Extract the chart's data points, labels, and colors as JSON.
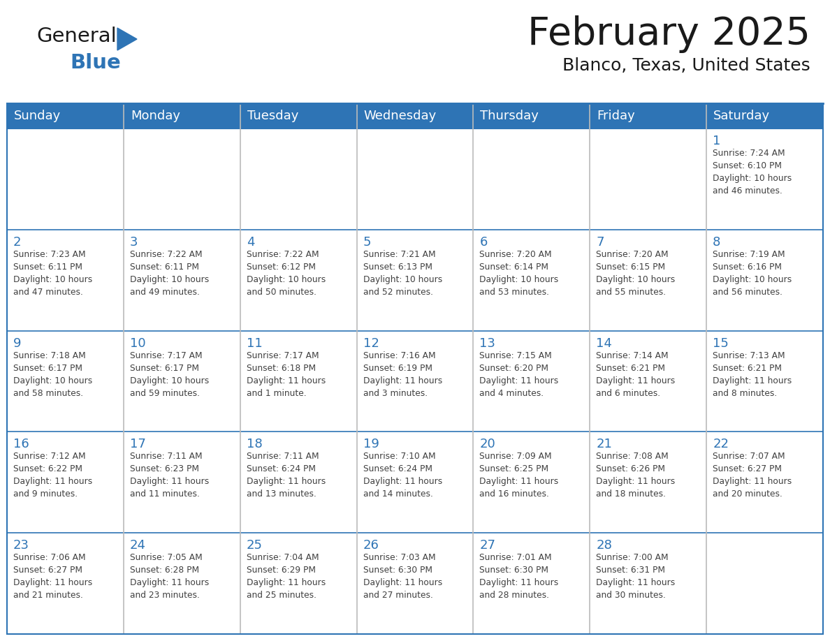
{
  "title": "February 2025",
  "subtitle": "Blanco, Texas, United States",
  "header_color": "#2E74B5",
  "header_text_color": "#FFFFFF",
  "day_number_color": "#2E74B5",
  "text_color": "#404040",
  "border_color": "#2E74B5",
  "row_sep_color": "#4472A8",
  "col_sep_color": "#BBBBBB",
  "logo_general_color": "#1a1a1a",
  "logo_blue_color": "#2E74B5",
  "triangle_color": "#2E74B5",
  "days_of_week": [
    "Sunday",
    "Monday",
    "Tuesday",
    "Wednesday",
    "Thursday",
    "Friday",
    "Saturday"
  ],
  "weeks": [
    [
      {
        "day": null,
        "info": null
      },
      {
        "day": null,
        "info": null
      },
      {
        "day": null,
        "info": null
      },
      {
        "day": null,
        "info": null
      },
      {
        "day": null,
        "info": null
      },
      {
        "day": null,
        "info": null
      },
      {
        "day": "1",
        "info": "Sunrise: 7:24 AM\nSunset: 6:10 PM\nDaylight: 10 hours\nand 46 minutes."
      }
    ],
    [
      {
        "day": "2",
        "info": "Sunrise: 7:23 AM\nSunset: 6:11 PM\nDaylight: 10 hours\nand 47 minutes."
      },
      {
        "day": "3",
        "info": "Sunrise: 7:22 AM\nSunset: 6:11 PM\nDaylight: 10 hours\nand 49 minutes."
      },
      {
        "day": "4",
        "info": "Sunrise: 7:22 AM\nSunset: 6:12 PM\nDaylight: 10 hours\nand 50 minutes."
      },
      {
        "day": "5",
        "info": "Sunrise: 7:21 AM\nSunset: 6:13 PM\nDaylight: 10 hours\nand 52 minutes."
      },
      {
        "day": "6",
        "info": "Sunrise: 7:20 AM\nSunset: 6:14 PM\nDaylight: 10 hours\nand 53 minutes."
      },
      {
        "day": "7",
        "info": "Sunrise: 7:20 AM\nSunset: 6:15 PM\nDaylight: 10 hours\nand 55 minutes."
      },
      {
        "day": "8",
        "info": "Sunrise: 7:19 AM\nSunset: 6:16 PM\nDaylight: 10 hours\nand 56 minutes."
      }
    ],
    [
      {
        "day": "9",
        "info": "Sunrise: 7:18 AM\nSunset: 6:17 PM\nDaylight: 10 hours\nand 58 minutes."
      },
      {
        "day": "10",
        "info": "Sunrise: 7:17 AM\nSunset: 6:17 PM\nDaylight: 10 hours\nand 59 minutes."
      },
      {
        "day": "11",
        "info": "Sunrise: 7:17 AM\nSunset: 6:18 PM\nDaylight: 11 hours\nand 1 minute."
      },
      {
        "day": "12",
        "info": "Sunrise: 7:16 AM\nSunset: 6:19 PM\nDaylight: 11 hours\nand 3 minutes."
      },
      {
        "day": "13",
        "info": "Sunrise: 7:15 AM\nSunset: 6:20 PM\nDaylight: 11 hours\nand 4 minutes."
      },
      {
        "day": "14",
        "info": "Sunrise: 7:14 AM\nSunset: 6:21 PM\nDaylight: 11 hours\nand 6 minutes."
      },
      {
        "day": "15",
        "info": "Sunrise: 7:13 AM\nSunset: 6:21 PM\nDaylight: 11 hours\nand 8 minutes."
      }
    ],
    [
      {
        "day": "16",
        "info": "Sunrise: 7:12 AM\nSunset: 6:22 PM\nDaylight: 11 hours\nand 9 minutes."
      },
      {
        "day": "17",
        "info": "Sunrise: 7:11 AM\nSunset: 6:23 PM\nDaylight: 11 hours\nand 11 minutes."
      },
      {
        "day": "18",
        "info": "Sunrise: 7:11 AM\nSunset: 6:24 PM\nDaylight: 11 hours\nand 13 minutes."
      },
      {
        "day": "19",
        "info": "Sunrise: 7:10 AM\nSunset: 6:24 PM\nDaylight: 11 hours\nand 14 minutes."
      },
      {
        "day": "20",
        "info": "Sunrise: 7:09 AM\nSunset: 6:25 PM\nDaylight: 11 hours\nand 16 minutes."
      },
      {
        "day": "21",
        "info": "Sunrise: 7:08 AM\nSunset: 6:26 PM\nDaylight: 11 hours\nand 18 minutes."
      },
      {
        "day": "22",
        "info": "Sunrise: 7:07 AM\nSunset: 6:27 PM\nDaylight: 11 hours\nand 20 minutes."
      }
    ],
    [
      {
        "day": "23",
        "info": "Sunrise: 7:06 AM\nSunset: 6:27 PM\nDaylight: 11 hours\nand 21 minutes."
      },
      {
        "day": "24",
        "info": "Sunrise: 7:05 AM\nSunset: 6:28 PM\nDaylight: 11 hours\nand 23 minutes."
      },
      {
        "day": "25",
        "info": "Sunrise: 7:04 AM\nSunset: 6:29 PM\nDaylight: 11 hours\nand 25 minutes."
      },
      {
        "day": "26",
        "info": "Sunrise: 7:03 AM\nSunset: 6:30 PM\nDaylight: 11 hours\nand 27 minutes."
      },
      {
        "day": "27",
        "info": "Sunrise: 7:01 AM\nSunset: 6:30 PM\nDaylight: 11 hours\nand 28 minutes."
      },
      {
        "day": "28",
        "info": "Sunrise: 7:00 AM\nSunset: 6:31 PM\nDaylight: 11 hours\nand 30 minutes."
      },
      {
        "day": null,
        "info": null
      }
    ]
  ]
}
